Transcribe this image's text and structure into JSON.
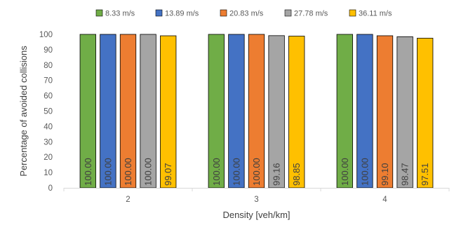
{
  "chart_data": {
    "type": "bar",
    "categories": [
      "2",
      "3",
      "4"
    ],
    "series": [
      {
        "name": "8.33 m/s",
        "color": "#70ad47",
        "values": [
          100.0,
          100.0,
          100.0
        ],
        "labels": [
          "100.00",
          "100.00",
          "100.00"
        ]
      },
      {
        "name": "13.89 m/s",
        "color": "#4472c4",
        "values": [
          100.0,
          100.0,
          100.0
        ],
        "labels": [
          "100.00",
          "100.00",
          "100.00"
        ]
      },
      {
        "name": "20.83 m/s",
        "color": "#ed7d31",
        "values": [
          100.0,
          100.0,
          99.1
        ],
        "labels": [
          "100.00",
          "100.00",
          "99.10"
        ]
      },
      {
        "name": "27.78 m/s",
        "color": "#a5a5a5",
        "values": [
          100.0,
          99.16,
          98.47
        ],
        "labels": [
          "100.00",
          "99.16",
          "98.47"
        ]
      },
      {
        "name": "36.11 m/s",
        "color": "#ffc000",
        "values": [
          99.07,
          98.85,
          97.51
        ],
        "labels": [
          "99.07",
          "98.85",
          "97.51"
        ]
      }
    ],
    "title": "",
    "xlabel": "Density [veh/km]",
    "ylabel": "Percentage of avoided collisions",
    "ylim": [
      0,
      100
    ],
    "yticks": [
      "0",
      "10",
      "20",
      "30",
      "40",
      "50",
      "60",
      "70",
      "80",
      "90",
      "100"
    ],
    "grid": false,
    "legend_position": "top"
  }
}
